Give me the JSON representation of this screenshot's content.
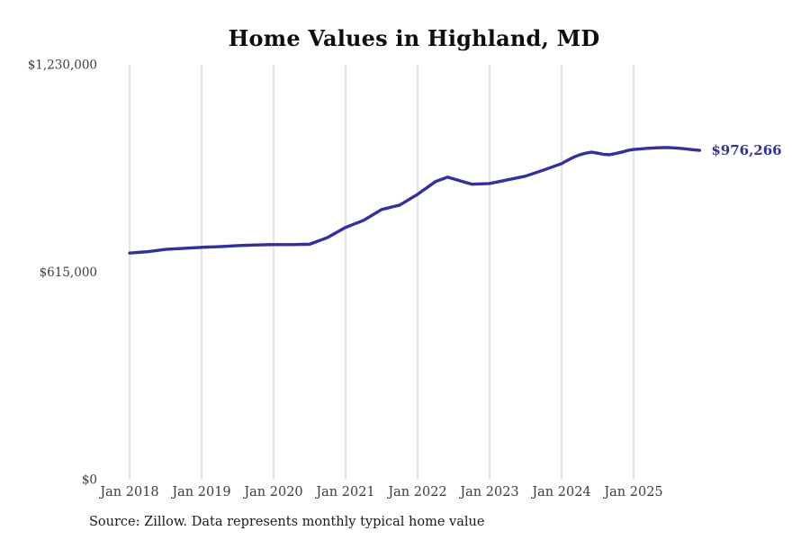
{
  "title": "Home Values in Highland, MD",
  "source_note": "Source: Zillow. Data represents monthly typical home value",
  "current_value_label": "$976,266",
  "colors": {
    "line": "#34309b",
    "grid": "#c9c9c9",
    "axis_text": "#3d3d3d",
    "title_text": "#0d0d0d",
    "background": "#ffffff"
  },
  "chart_data": {
    "type": "line",
    "title": "Home Values in Highland, MD",
    "xlabel": "",
    "ylabel": "",
    "ylim": [
      0,
      1230000
    ],
    "grid": "vertical",
    "legend": "none",
    "frequency": "monthly",
    "start_month": "Jan 2018",
    "end_month": "Dec 2025",
    "end_value": 976266,
    "y_ticks": [
      {
        "value": 0,
        "label": "$0"
      },
      {
        "value": 615000,
        "label": "$615,000"
      },
      {
        "value": 1230000,
        "label": "$1,230,000"
      }
    ],
    "x_ticks": [
      "Jan 2018",
      "Jan 2019",
      "Jan 2020",
      "Jan 2021",
      "Jan 2022",
      "Jan 2023",
      "Jan 2024",
      "Jan 2025"
    ],
    "series": [
      {
        "name": "Typical home value",
        "values": [
          672000,
          673300,
          674700,
          676000,
          678300,
          680700,
          683000,
          684000,
          685000,
          686000,
          687000,
          688000,
          689000,
          689700,
          690300,
          691000,
          692000,
          693000,
          694000,
          694700,
          695300,
          696000,
          696300,
          696700,
          697000,
          697000,
          697000,
          697000,
          697300,
          697700,
          698000,
          704700,
          711300,
          718000,
          728000,
          738000,
          748000,
          755000,
          762000,
          769000,
          779700,
          790300,
          801000,
          805300,
          809700,
          814000,
          824700,
          835300,
          846000,
          858700,
          871300,
          884000,
          890500,
          897000,
          891800,
          886500,
          881300,
          876000,
          876700,
          877300,
          878000,
          881700,
          885300,
          889000,
          892700,
          896300,
          900000,
          906000,
          912000,
          918000,
          924300,
          930700,
          937000,
          947000,
          956000,
          963000,
          968000,
          971000,
          968000,
          964500,
          963500,
          967000,
          971000,
          976000,
          979000,
          980500,
          982000,
          983000,
          984000,
          984500,
          984500,
          983500,
          982000,
          980000,
          978000,
          976266
        ]
      }
    ]
  }
}
